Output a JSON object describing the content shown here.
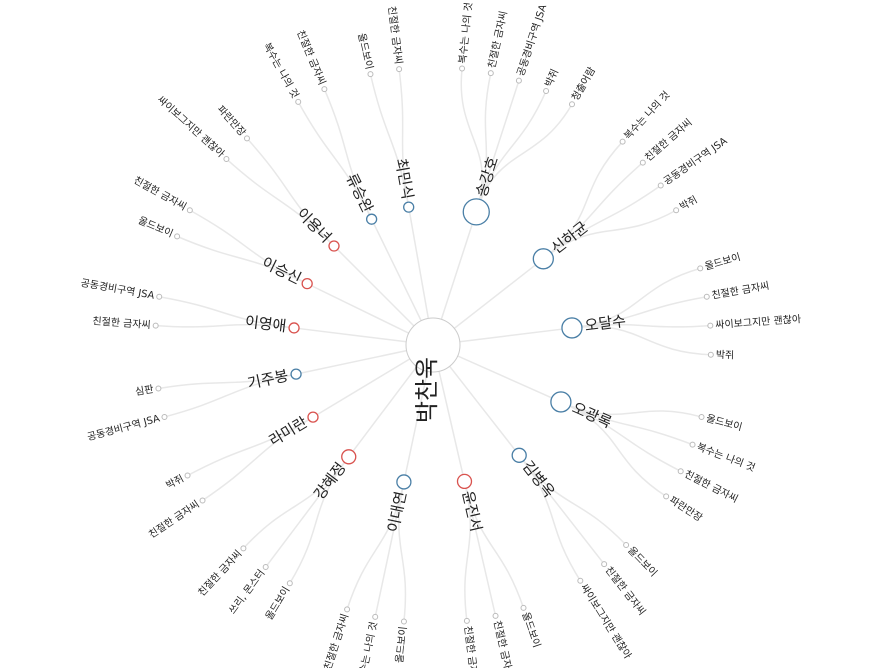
{
  "root": {
    "label": "박찬욱",
    "children": [
      {
        "label": "최민식",
        "color": "#4a7fa6",
        "children": [
          {
            "label": "올드보이"
          },
          {
            "label": "친절한 금자씨"
          }
        ]
      },
      {
        "label": "송강호",
        "color": "#4a7fa6",
        "children": [
          {
            "label": "복수는 나의 것"
          },
          {
            "label": "친절한 금자씨"
          },
          {
            "label": "공동경비구역 JSA"
          },
          {
            "label": "박쥐"
          },
          {
            "label": "청출어람"
          }
        ]
      },
      {
        "label": "신하균",
        "color": "#4a7fa6",
        "children": [
          {
            "label": "복수는 나의 것"
          },
          {
            "label": "친절한 금자씨"
          },
          {
            "label": "공동경비구역 JSA"
          },
          {
            "label": "박쥐"
          }
        ]
      },
      {
        "label": "오달수",
        "color": "#4a7fa6",
        "children": [
          {
            "label": "올드보이"
          },
          {
            "label": "친절한 금자씨"
          },
          {
            "label": "싸이보그지만 괜찮아"
          },
          {
            "label": "박쥐"
          }
        ]
      },
      {
        "label": "오광록",
        "color": "#4a7fa6",
        "children": [
          {
            "label": "올드보이"
          },
          {
            "label": "복수는 나의 것"
          },
          {
            "label": "친절한 금자씨"
          },
          {
            "label": "파란만장"
          }
        ]
      },
      {
        "label": "김병옥",
        "color": "#4a7fa6",
        "children": [
          {
            "label": "올드보이"
          },
          {
            "label": "친절한 금자씨"
          },
          {
            "label": "싸이보그지만 괜찮아"
          }
        ]
      },
      {
        "label": "윤진서",
        "color": "#d9534f",
        "children": [
          {
            "label": "올드보이"
          },
          {
            "label": "친절한 금자씨"
          },
          {
            "label": "친절한 금자씨"
          }
        ]
      },
      {
        "label": "이대연",
        "color": "#4a7fa6",
        "children": [
          {
            "label": "올드보이"
          },
          {
            "label": "복수는 나의 것"
          },
          {
            "label": "친절한 금자씨"
          }
        ]
      },
      {
        "label": "강혜정",
        "color": "#d9534f",
        "children": [
          {
            "label": "올드보이"
          },
          {
            "label": "쓰리, 몬스터"
          },
          {
            "label": "친절한 금자씨"
          }
        ]
      },
      {
        "label": "라미란",
        "color": "#d9534f",
        "children": [
          {
            "label": "친절한 금자씨"
          },
          {
            "label": "박쥐"
          }
        ]
      },
      {
        "label": "기주봉",
        "color": "#4a7fa6",
        "children": [
          {
            "label": "공동경비구역 JSA"
          },
          {
            "label": "심판"
          }
        ]
      },
      {
        "label": "이영애",
        "color": "#d9534f",
        "children": [
          {
            "label": "친절한 금자씨"
          },
          {
            "label": "공동경비구역 JSA"
          }
        ]
      },
      {
        "label": "이승신",
        "color": "#d9534f",
        "children": [
          {
            "label": "올드보이"
          },
          {
            "label": "친절한 금자씨"
          }
        ]
      },
      {
        "label": "이용녀",
        "color": "#d9534f",
        "children": [
          {
            "label": "싸이보그지만 괜찮아"
          },
          {
            "label": "파란만장"
          }
        ]
      },
      {
        "label": "류승완",
        "color": "#4a7fa6",
        "children": [
          {
            "label": "복수는 나의 것"
          },
          {
            "label": "친절한 금자씨"
          }
        ]
      }
    ]
  }
}
